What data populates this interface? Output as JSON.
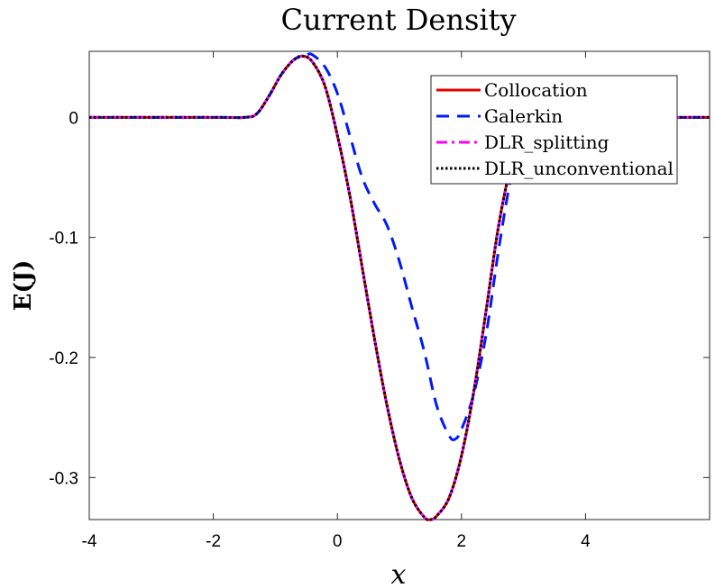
{
  "chart_data": {
    "type": "line",
    "title": "Current Density",
    "xlabel": "x",
    "ylabel": "E(J)",
    "xlim": [
      -4,
      6
    ],
    "ylim": [
      -0.335,
      0.055
    ],
    "xticks": [
      -4,
      -2,
      0,
      2,
      4
    ],
    "xtick_labels": [
      "-4",
      "-2",
      "0",
      "2",
      "4"
    ],
    "yticks": [
      0,
      -0.1,
      -0.2,
      -0.3
    ],
    "ytick_labels": [
      "0",
      "-0.1",
      "-0.2",
      "-0.3"
    ],
    "grid": false,
    "legend_position": "top-right",
    "series": [
      {
        "name": "Collocation",
        "color": "#e60000",
        "style": "solid",
        "x": [
          -4,
          -2,
          -1.5,
          -1.3,
          -1.1,
          -0.9,
          -0.7,
          -0.55,
          -0.4,
          -0.2,
          0,
          0.2,
          0.4,
          0.6,
          0.8,
          1.0,
          1.2,
          1.4,
          1.5,
          1.6,
          1.8,
          2.0,
          2.2,
          2.4,
          2.6,
          2.8,
          3.0,
          3.2,
          3.4,
          3.6,
          4,
          6
        ],
        "y": [
          0,
          0,
          0,
          0.003,
          0.018,
          0.036,
          0.048,
          0.051,
          0.046,
          0.026,
          -0.015,
          -0.065,
          -0.125,
          -0.185,
          -0.24,
          -0.285,
          -0.317,
          -0.333,
          -0.335,
          -0.332,
          -0.317,
          -0.282,
          -0.228,
          -0.16,
          -0.09,
          -0.04,
          -0.01,
          -0.001,
          0,
          0,
          0,
          0
        ]
      },
      {
        "name": "Galerkin",
        "color": "#0019ff",
        "style": "dashed",
        "x": [
          -4,
          -2,
          -1.5,
          -1.3,
          -1.1,
          -0.9,
          -0.7,
          -0.5,
          -0.4,
          -0.2,
          0,
          0.2,
          0.4,
          0.6,
          0.8,
          1.0,
          1.2,
          1.4,
          1.6,
          1.8,
          1.9,
          2.0,
          2.2,
          2.4,
          2.6,
          2.8,
          3.0,
          3.2,
          3.4,
          3.6,
          4,
          6
        ],
        "y": [
          0,
          0,
          0,
          0.003,
          0.018,
          0.036,
          0.048,
          0.052,
          0.052,
          0.042,
          0.02,
          -0.015,
          -0.05,
          -0.072,
          -0.09,
          -0.12,
          -0.158,
          -0.195,
          -0.24,
          -0.265,
          -0.268,
          -0.26,
          -0.23,
          -0.18,
          -0.11,
          -0.05,
          -0.015,
          -0.002,
          0,
          0,
          0,
          0
        ]
      },
      {
        "name": "DLR_splitting",
        "color": "#ff00ff",
        "style": "dashdot",
        "x": [
          -4,
          -2,
          -1.5,
          -1.3,
          -1.1,
          -0.9,
          -0.7,
          -0.55,
          -0.4,
          -0.2,
          0,
          0.2,
          0.4,
          0.6,
          0.8,
          1.0,
          1.2,
          1.4,
          1.5,
          1.6,
          1.8,
          2.0,
          2.2,
          2.4,
          2.6,
          2.8,
          3.0,
          3.2,
          3.4,
          3.6,
          4,
          6
        ],
        "y": [
          0,
          0,
          0,
          0.003,
          0.018,
          0.036,
          0.048,
          0.051,
          0.046,
          0.026,
          -0.015,
          -0.065,
          -0.125,
          -0.185,
          -0.24,
          -0.285,
          -0.317,
          -0.333,
          -0.335,
          -0.332,
          -0.317,
          -0.282,
          -0.228,
          -0.16,
          -0.09,
          -0.04,
          -0.01,
          -0.001,
          0,
          0,
          0,
          0
        ]
      },
      {
        "name": "DLR_unconventional",
        "color": "#000000",
        "style": "dotted",
        "x": [
          -4,
          -2,
          -1.5,
          -1.3,
          -1.1,
          -0.9,
          -0.7,
          -0.55,
          -0.4,
          -0.2,
          0,
          0.2,
          0.4,
          0.6,
          0.8,
          1.0,
          1.2,
          1.4,
          1.5,
          1.6,
          1.8,
          2.0,
          2.2,
          2.4,
          2.6,
          2.8,
          3.0,
          3.2,
          3.4,
          3.6,
          4,
          6
        ],
        "y": [
          0,
          0,
          0,
          0.003,
          0.018,
          0.036,
          0.048,
          0.051,
          0.046,
          0.026,
          -0.015,
          -0.065,
          -0.125,
          -0.185,
          -0.24,
          -0.285,
          -0.317,
          -0.333,
          -0.335,
          -0.332,
          -0.317,
          -0.282,
          -0.228,
          -0.16,
          -0.09,
          -0.04,
          -0.01,
          -0.001,
          0,
          0,
          0,
          0
        ]
      }
    ]
  }
}
